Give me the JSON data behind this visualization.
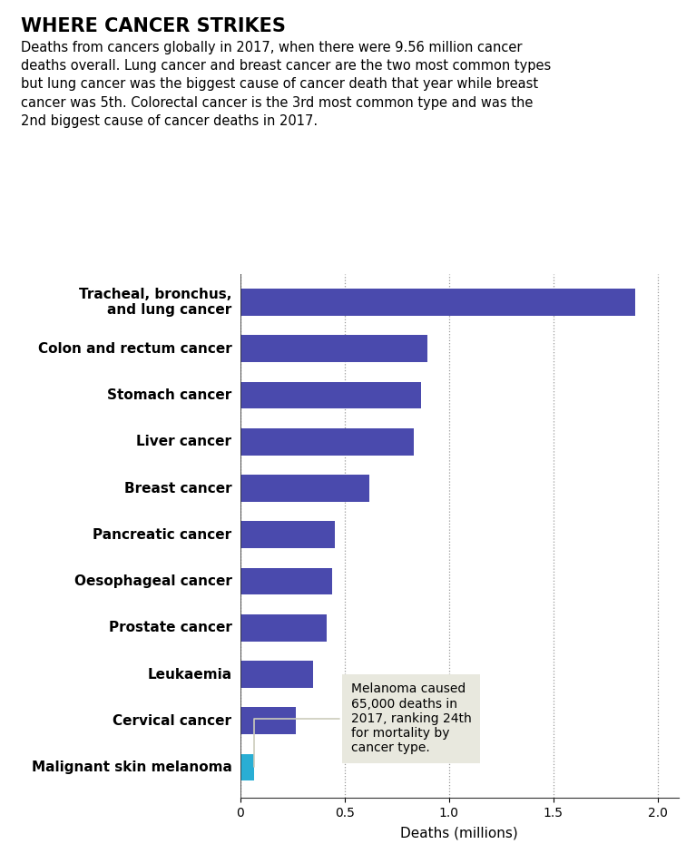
{
  "title": "WHERE CANCER STRIKES",
  "subtitle": "Deaths from cancers globally in 2017, when there were 9.56 million cancer\ndeaths overall. Lung cancer and breast cancer are the two most common types\nbut lung cancer was the biggest cause of cancer death that year while breast\ncancer was 5th. Colorectal cancer is the 3rd most common type and was the\n2nd biggest cause of cancer deaths in 2017.",
  "categories": [
    "Tracheal, bronchus,\nand lung cancer",
    "Colon and rectum cancer",
    "Stomach cancer",
    "Liver cancer",
    "Breast cancer",
    "Pancreatic cancer",
    "Oesophageal cancer",
    "Prostate cancer",
    "Leukaemia",
    "Cervical cancer",
    "Malignant skin melanoma"
  ],
  "values": [
    1.89,
    0.895,
    0.865,
    0.83,
    0.62,
    0.455,
    0.44,
    0.415,
    0.35,
    0.265,
    0.065
  ],
  "bar_colors": [
    "#4a4aad",
    "#4a4aad",
    "#4a4aad",
    "#4a4aad",
    "#4a4aad",
    "#4a4aad",
    "#4a4aad",
    "#4a4aad",
    "#4a4aad",
    "#4a4aad",
    "#29aed4"
  ],
  "xlabel": "Deaths (millions)",
  "xlim": [
    0,
    2.1
  ],
  "xticks": [
    0,
    0.5,
    1.0,
    1.5,
    2.0
  ],
  "xtick_labels": [
    "0",
    "0.5",
    "1.0",
    "1.5",
    "2.0"
  ],
  "annotation_text": "Melanoma caused\n65,000 deaths in\n2017, ranking 24th\nfor mortality by\ncancer type.",
  "annotation_box_color": "#e8e8de",
  "title_fontsize": 15,
  "subtitle_fontsize": 10.5,
  "label_fontsize": 11,
  "axis_label_fontsize": 11,
  "tick_fontsize": 10,
  "background_color": "#ffffff",
  "grid_color": "#999999"
}
